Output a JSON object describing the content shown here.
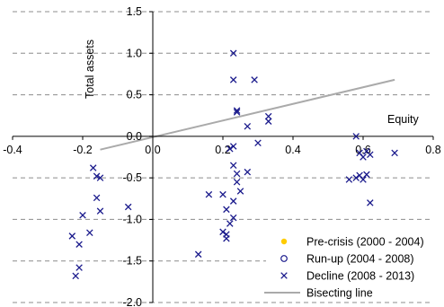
{
  "chart_data": {
    "type": "scatter",
    "xlabel": "Equity",
    "ylabel": "Total assets",
    "xlim": [
      -0.4,
      0.8
    ],
    "ylim": [
      -2.0,
      1.5
    ],
    "x_ticks": [
      {
        "value": -0.4,
        "label": "-0.4"
      },
      {
        "value": -0.2,
        "label": "-0.2"
      },
      {
        "value": 0.0,
        "label": "0.0"
      },
      {
        "value": 0.2,
        "label": "0.2"
      },
      {
        "value": 0.4,
        "label": "0.4"
      },
      {
        "value": 0.6,
        "label": "0.6"
      },
      {
        "value": 0.8,
        "label": "0.8"
      }
    ],
    "y_ticks": [
      {
        "value": 1.5,
        "label": "1.5"
      },
      {
        "value": 1.0,
        "label": "1.0"
      },
      {
        "value": 0.5,
        "label": "0.5"
      },
      {
        "value": 0.0,
        "label": "0.0"
      },
      {
        "value": -0.5,
        "label": "-0.5"
      },
      {
        "value": -1.0,
        "label": "-1.0"
      },
      {
        "value": -1.5,
        "label": "-1.5"
      },
      {
        "value": -2.0,
        "label": "-2.0"
      }
    ],
    "grid": {
      "horizontal": true,
      "style": "dashed"
    },
    "legend_position": "bottom-right",
    "series": [
      {
        "name": "Pre-crisis (2000 - 2004)",
        "marker": "dot",
        "color": "#ffcc00",
        "points": []
      },
      {
        "name": "Run-up (2004 - 2008)",
        "marker": "circle",
        "color": "#1a1a8c",
        "points": []
      },
      {
        "name": "Decline (2008 - 2013)",
        "marker": "x",
        "color": "#1a1a8c",
        "points": [
          [
            0.23,
            1.0
          ],
          [
            0.23,
            0.68
          ],
          [
            0.29,
            0.68
          ],
          [
            0.24,
            0.31
          ],
          [
            0.24,
            0.29
          ],
          [
            0.33,
            0.24
          ],
          [
            0.33,
            0.18
          ],
          [
            0.27,
            0.12
          ],
          [
            0.3,
            -0.08
          ],
          [
            0.22,
            -0.15
          ],
          [
            0.23,
            -0.12
          ],
          [
            0.23,
            -0.35
          ],
          [
            0.24,
            -0.45
          ],
          [
            0.27,
            -0.43
          ],
          [
            0.24,
            -0.55
          ],
          [
            0.25,
            -0.66
          ],
          [
            0.2,
            -0.7
          ],
          [
            0.16,
            -0.7
          ],
          [
            0.23,
            -0.78
          ],
          [
            0.21,
            -0.88
          ],
          [
            0.23,
            -0.98
          ],
          [
            0.22,
            -1.05
          ],
          [
            0.2,
            -1.15
          ],
          [
            0.21,
            -1.18
          ],
          [
            0.21,
            -1.23
          ],
          [
            0.13,
            -1.42
          ],
          [
            -0.17,
            -0.38
          ],
          [
            -0.16,
            -0.48
          ],
          [
            -0.15,
            -0.5
          ],
          [
            -0.16,
            -0.74
          ],
          [
            -0.15,
            -0.9
          ],
          [
            -0.2,
            -0.95
          ],
          [
            -0.07,
            -0.85
          ],
          [
            -0.18,
            -1.16
          ],
          [
            -0.23,
            -1.2
          ],
          [
            -0.21,
            -1.3
          ],
          [
            -0.21,
            -1.58
          ],
          [
            -0.22,
            -1.68
          ],
          [
            0.58,
            0.0
          ],
          [
            0.59,
            -0.2
          ],
          [
            0.61,
            -0.18
          ],
          [
            0.6,
            -0.25
          ],
          [
            0.62,
            -0.22
          ],
          [
            0.69,
            -0.2
          ],
          [
            0.58,
            -0.5
          ],
          [
            0.59,
            -0.47
          ],
          [
            0.61,
            -0.46
          ],
          [
            0.6,
            -0.52
          ],
          [
            0.56,
            -0.52
          ],
          [
            0.62,
            -0.8
          ]
        ]
      },
      {
        "name": "Bisecting line",
        "marker": "line",
        "color": "#aaaaaa",
        "points": [
          [
            -0.15,
            -0.16
          ],
          [
            0.69,
            0.68
          ]
        ]
      }
    ]
  }
}
